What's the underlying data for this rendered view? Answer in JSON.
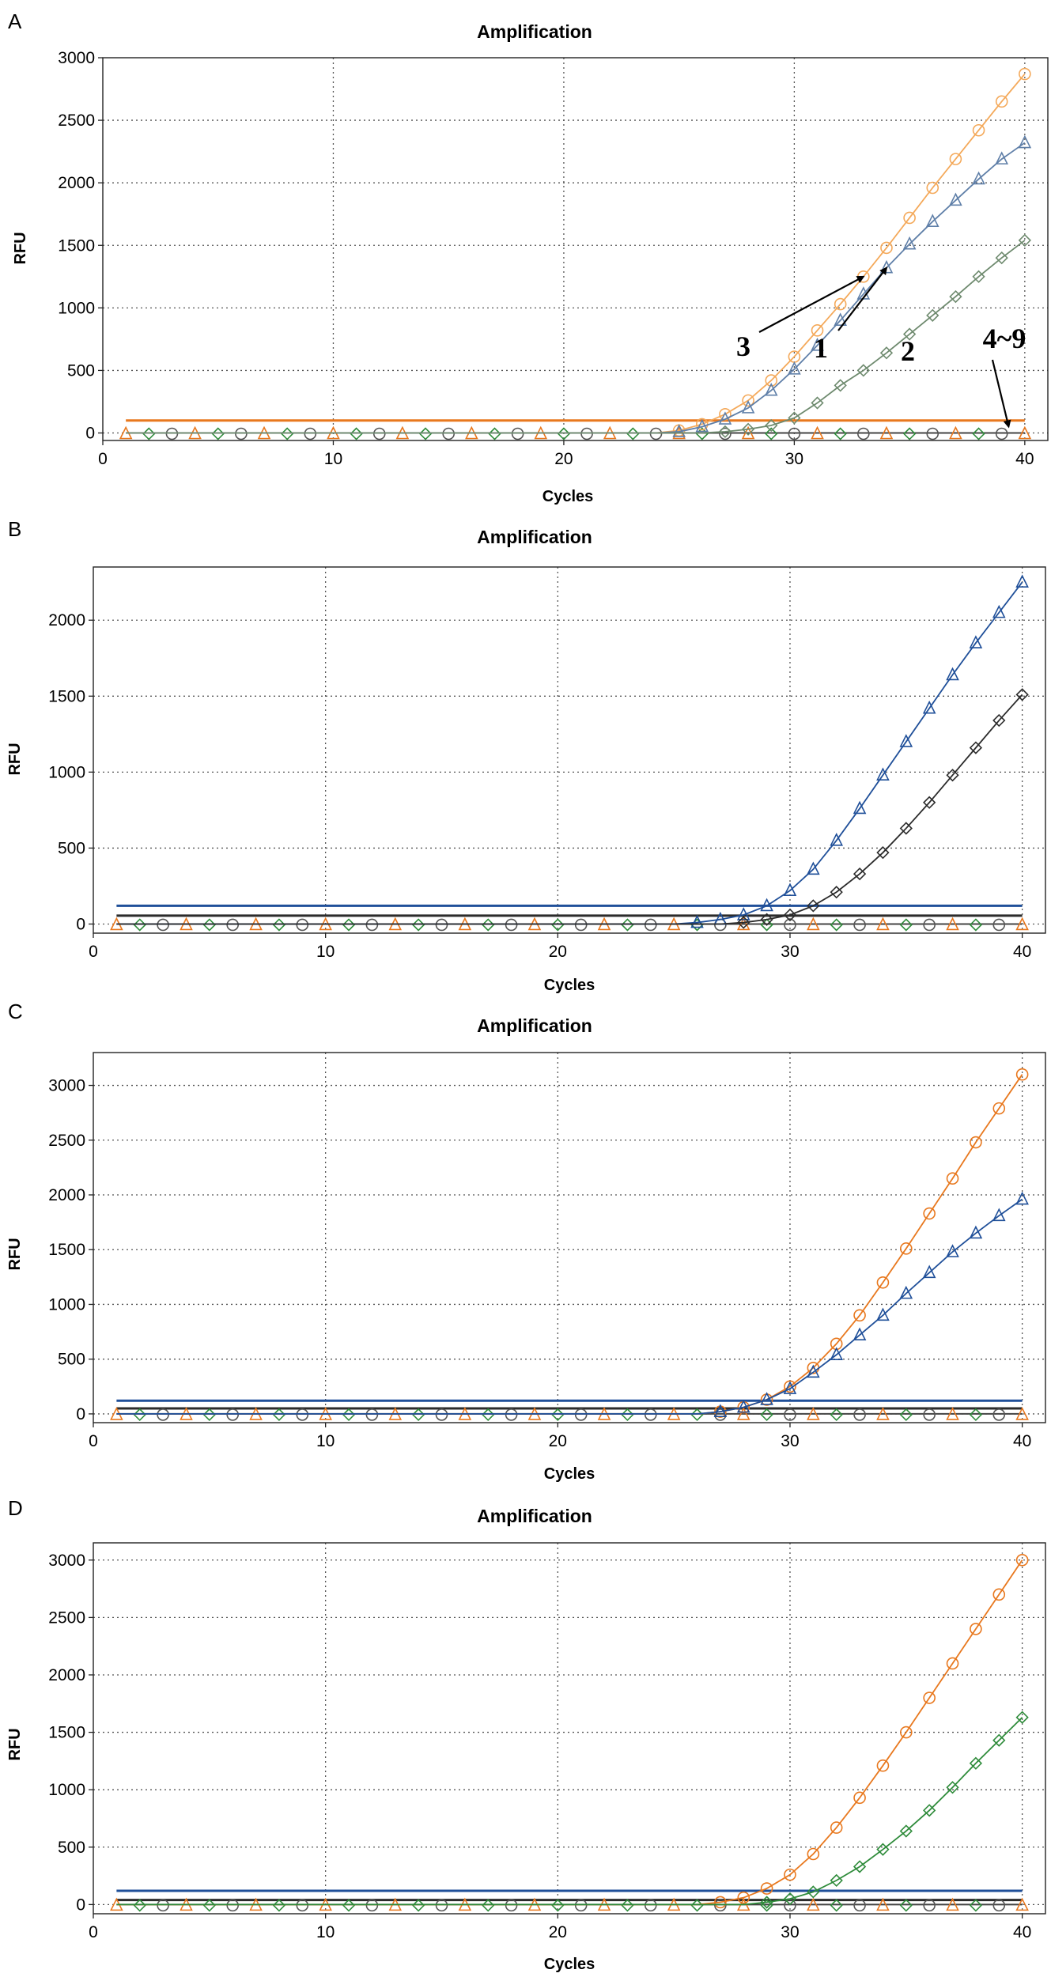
{
  "chart_data": [
    {
      "panel": "A",
      "type": "line",
      "title": "Amplification",
      "xlabel": "Cycles",
      "ylabel": "RFU",
      "xlim": [
        0,
        41
      ],
      "ylim": [
        -60,
        3000
      ],
      "xticks": [
        0,
        10,
        20,
        30,
        40
      ],
      "yticks": [
        0,
        500,
        1000,
        1500,
        2000,
        2500,
        3000
      ],
      "grid": true,
      "thresholds": [
        {
          "value": 100,
          "color": "#e8781e"
        }
      ],
      "series": [
        {
          "name": "3",
          "marker": "circle",
          "color": "#f4a95a",
          "x": [
            25,
            26,
            27,
            28,
            29,
            30,
            31,
            32,
            33,
            34,
            35,
            36,
            37,
            38,
            39,
            40
          ],
          "y": [
            20,
            70,
            150,
            260,
            420,
            610,
            820,
            1030,
            1250,
            1480,
            1720,
            1960,
            2190,
            2420,
            2650,
            2870
          ]
        },
        {
          "name": "1",
          "marker": "triangle",
          "color": "#5f7fa8",
          "x": [
            25,
            26,
            27,
            28,
            29,
            30,
            31,
            32,
            33,
            34,
            35,
            36,
            37,
            38,
            39,
            40
          ],
          "y": [
            10,
            50,
            110,
            200,
            340,
            510,
            700,
            900,
            1110,
            1320,
            1510,
            1690,
            1860,
            2030,
            2190,
            2320
          ]
        },
        {
          "name": "2",
          "marker": "diamond",
          "color": "#6e8a6e",
          "x": [
            27,
            28,
            29,
            30,
            31,
            32,
            33,
            34,
            35,
            36,
            37,
            38,
            39,
            40
          ],
          "y": [
            10,
            30,
            60,
            120,
            240,
            380,
            500,
            640,
            790,
            940,
            1090,
            1250,
            1400,
            1540
          ]
        },
        {
          "name": "4~9",
          "marker": "triangle",
          "color": "#888888",
          "baseline": true,
          "x": [],
          "y": []
        }
      ],
      "annotations": [
        {
          "label": "3",
          "target": [
            33,
            1250
          ]
        },
        {
          "label": "1",
          "target": [
            34,
            1320
          ]
        },
        {
          "label": "2",
          "target": null
        },
        {
          "label": "4~9",
          "target": [
            39.3,
            0
          ]
        }
      ]
    },
    {
      "panel": "B",
      "type": "line",
      "title": "Amplification",
      "xlabel": "Cycles",
      "ylabel": "RFU",
      "xlim": [
        0,
        41
      ],
      "ylim": [
        -60,
        2350
      ],
      "xticks": [
        0,
        10,
        20,
        30,
        40
      ],
      "yticks": [
        0,
        500,
        1000,
        1500,
        2000
      ],
      "grid": true,
      "thresholds": [
        {
          "value": 120,
          "color": "#1f4f99"
        },
        {
          "value": 55,
          "color": "#2b2b2b"
        }
      ],
      "series": [
        {
          "name": "triangle",
          "marker": "triangle",
          "color": "#1f4f99",
          "x": [
            26,
            27,
            28,
            29,
            30,
            31,
            32,
            33,
            34,
            35,
            36,
            37,
            38,
            39,
            40
          ],
          "y": [
            10,
            30,
            60,
            120,
            220,
            360,
            550,
            760,
            980,
            1200,
            1420,
            1640,
            1850,
            2050,
            2250
          ]
        },
        {
          "name": "diamond",
          "marker": "diamond",
          "color": "#2b2b2b",
          "x": [
            28,
            29,
            30,
            31,
            32,
            33,
            34,
            35,
            36,
            37,
            38,
            39,
            40
          ],
          "y": [
            10,
            30,
            60,
            120,
            210,
            330,
            470,
            630,
            800,
            980,
            1160,
            1340,
            1510
          ]
        }
      ]
    },
    {
      "panel": "C",
      "type": "line",
      "title": "Amplification",
      "xlabel": "Cycles",
      "ylabel": "RFU",
      "xlim": [
        0,
        41
      ],
      "ylim": [
        -80,
        3300
      ],
      "xticks": [
        0,
        10,
        20,
        30,
        40
      ],
      "yticks": [
        0,
        500,
        1000,
        1500,
        2000,
        2500,
        3000
      ],
      "grid": true,
      "thresholds": [
        {
          "value": 120,
          "color": "#1f4f99"
        },
        {
          "value": 50,
          "color": "#2b2b2b"
        }
      ],
      "series": [
        {
          "name": "circle",
          "marker": "circle",
          "color": "#e8781e",
          "x": [
            27,
            28,
            29,
            30,
            31,
            32,
            33,
            34,
            35,
            36,
            37,
            38,
            39,
            40
          ],
          "y": [
            20,
            60,
            130,
            250,
            420,
            640,
            900,
            1200,
            1510,
            1830,
            2150,
            2480,
            2790,
            3100
          ]
        },
        {
          "name": "triangle",
          "marker": "triangle",
          "color": "#1f4f99",
          "x": [
            27,
            28,
            29,
            30,
            31,
            32,
            33,
            34,
            35,
            36,
            37,
            38,
            39,
            40
          ],
          "y": [
            20,
            60,
            130,
            230,
            380,
            540,
            720,
            900,
            1100,
            1290,
            1480,
            1650,
            1810,
            1960
          ]
        }
      ]
    },
    {
      "panel": "D",
      "type": "line",
      "title": "Amplification",
      "xlabel": "Cycles",
      "ylabel": "RFU",
      "xlim": [
        0,
        41
      ],
      "ylim": [
        -80,
        3150
      ],
      "xticks": [
        0,
        10,
        20,
        30,
        40
      ],
      "yticks": [
        0,
        500,
        1000,
        1500,
        2000,
        2500,
        3000
      ],
      "grid": true,
      "thresholds": [
        {
          "value": 120,
          "color": "#1f4f99"
        },
        {
          "value": 40,
          "color": "#2b2b2b"
        }
      ],
      "series": [
        {
          "name": "circle",
          "marker": "circle",
          "color": "#e8781e",
          "x": [
            27,
            28,
            29,
            30,
            31,
            32,
            33,
            34,
            35,
            36,
            37,
            38,
            39,
            40
          ],
          "y": [
            20,
            60,
            140,
            260,
            440,
            670,
            930,
            1210,
            1500,
            1800,
            2100,
            2400,
            2700,
            3000
          ]
        },
        {
          "name": "diamond",
          "marker": "diamond",
          "color": "#2e8b3a",
          "x": [
            29,
            30,
            31,
            32,
            33,
            34,
            35,
            36,
            37,
            38,
            39,
            40
          ],
          "y": [
            20,
            50,
            110,
            210,
            330,
            480,
            640,
            820,
            1020,
            1230,
            1430,
            1630
          ]
        }
      ]
    }
  ]
}
